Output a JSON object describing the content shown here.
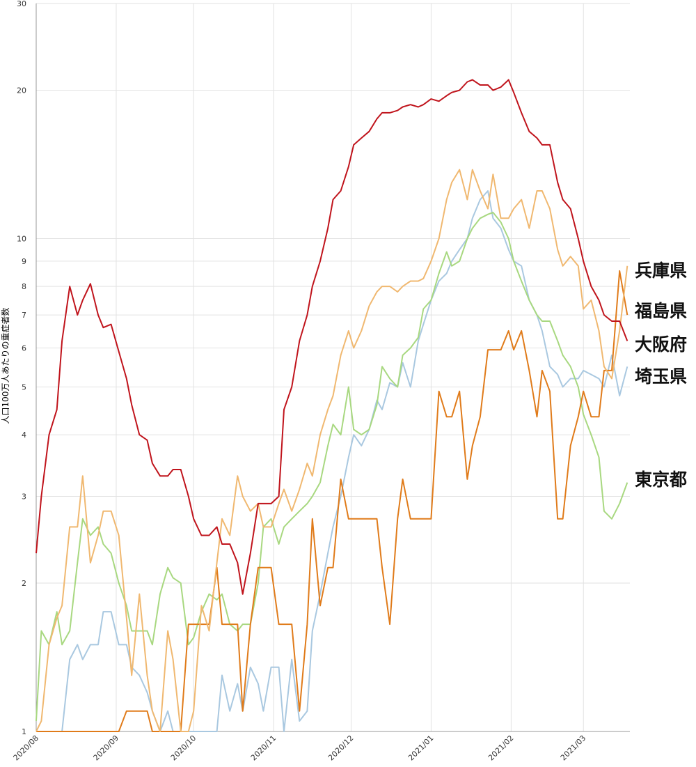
{
  "chart_data": {
    "type": "line",
    "y_label": "人口100万人あたりの重症者数",
    "log_y": true,
    "grid": true,
    "xlim": [
      0,
      230
    ],
    "ylim": [
      1,
      30
    ],
    "xticks": [
      {
        "value": 0,
        "label": "2020/08"
      },
      {
        "value": 31,
        "label": "2020/09"
      },
      {
        "value": 61,
        "label": "2020/10"
      },
      {
        "value": 92,
        "label": "2020/11"
      },
      {
        "value": 122,
        "label": "2020/12"
      },
      {
        "value": 153,
        "label": "2021/01"
      },
      {
        "value": 184,
        "label": "2021/02"
      },
      {
        "value": 212,
        "label": "2021/03"
      }
    ],
    "yticks": [
      1,
      2,
      3,
      4,
      5,
      6,
      7,
      8,
      9,
      10,
      20,
      30
    ],
    "x": [
      0,
      2,
      5,
      8,
      10,
      13,
      16,
      18,
      21,
      24,
      26,
      29,
      32,
      35,
      37,
      40,
      43,
      45,
      48,
      51,
      53,
      56,
      59,
      61,
      64,
      67,
      70,
      72,
      75,
      78,
      80,
      83,
      86,
      88,
      91,
      94,
      96,
      99,
      102,
      105,
      107,
      110,
      113,
      115,
      118,
      121,
      123,
      126,
      129,
      132,
      134,
      137,
      140,
      142,
      145,
      148,
      150,
      153,
      156,
      159,
      161,
      164,
      167,
      169,
      172,
      175,
      177,
      180,
      183,
      185,
      188,
      191,
      194,
      196,
      199,
      202,
      204,
      207,
      210,
      212,
      215,
      218,
      220,
      223,
      226,
      229
    ],
    "series": [
      {
        "name": "兵庫県",
        "color": "#f0b870",
        "values": [
          1.0,
          1.05,
          1.5,
          1.7,
          1.8,
          2.6,
          2.6,
          3.3,
          2.2,
          2.5,
          2.8,
          2.8,
          2.5,
          1.7,
          1.3,
          1.9,
          1.3,
          1.1,
          1.0,
          1.6,
          1.4,
          1.0,
          1.0,
          1.1,
          1.8,
          1.6,
          2.2,
          2.7,
          2.5,
          3.3,
          3.0,
          2.8,
          2.9,
          2.6,
          2.6,
          2.9,
          3.1,
          2.8,
          3.1,
          3.5,
          3.3,
          4.0,
          4.5,
          4.8,
          5.8,
          6.5,
          6.0,
          6.5,
          7.3,
          7.8,
          8.0,
          8.0,
          7.8,
          8.0,
          8.2,
          8.2,
          8.3,
          9.0,
          10,
          12,
          13,
          13.8,
          12,
          13.8,
          12.5,
          11.5,
          13.5,
          11,
          11,
          11.5,
          12,
          10.5,
          12.5,
          12.5,
          11.5,
          9.5,
          8.8,
          9.2,
          8.8,
          7.2,
          7.5,
          6.5,
          5.5,
          5.2,
          6.5,
          8.8
        ]
      },
      {
        "name": "福島県",
        "color": "#e07b1a",
        "values": [
          1.0,
          1.0,
          1.0,
          1.0,
          1.0,
          1.0,
          1.0,
          1.0,
          1.0,
          1.0,
          1.0,
          1.0,
          1.0,
          1.1,
          1.1,
          1.1,
          1.1,
          1.0,
          1.0,
          1.0,
          1.0,
          1.0,
          1.65,
          1.65,
          1.65,
          1.65,
          2.15,
          1.65,
          1.65,
          1.65,
          1.1,
          1.65,
          2.15,
          2.15,
          2.15,
          1.65,
          1.65,
          1.65,
          1.1,
          1.65,
          2.7,
          1.8,
          2.15,
          2.15,
          3.25,
          2.7,
          2.7,
          2.7,
          2.7,
          2.7,
          2.15,
          1.65,
          2.7,
          3.25,
          2.7,
          2.7,
          2.7,
          2.7,
          4.9,
          4.35,
          4.35,
          4.9,
          3.25,
          3.8,
          4.35,
          5.95,
          5.95,
          5.95,
          6.5,
          5.95,
          6.5,
          5.4,
          4.35,
          5.4,
          4.9,
          2.7,
          2.7,
          3.8,
          4.35,
          4.9,
          4.35,
          4.35,
          5.4,
          5.4,
          8.6,
          7.0
        ]
      },
      {
        "name": "大阪府",
        "color": "#c0141c",
        "values": [
          2.3,
          3.0,
          4.0,
          4.5,
          6.2,
          8.0,
          7.0,
          7.5,
          8.1,
          7.0,
          6.6,
          6.7,
          5.9,
          5.2,
          4.6,
          4.0,
          3.9,
          3.5,
          3.3,
          3.3,
          3.4,
          3.4,
          3.0,
          2.7,
          2.5,
          2.5,
          2.6,
          2.4,
          2.4,
          2.2,
          1.9,
          2.3,
          2.9,
          2.9,
          2.9,
          3.0,
          4.5,
          5.0,
          6.2,
          7.0,
          8.0,
          9.0,
          10.5,
          12.0,
          12.5,
          14,
          15.5,
          16,
          16.5,
          17.5,
          18,
          18,
          18.2,
          18.5,
          18.7,
          18.5,
          18.7,
          19.2,
          19,
          19.5,
          19.8,
          20,
          20.8,
          21,
          20.5,
          20.5,
          20,
          20.3,
          21,
          19.8,
          18,
          16.5,
          16,
          15.5,
          15.5,
          13,
          12,
          11.5,
          10,
          9,
          8,
          7.5,
          7,
          6.8,
          6.8,
          6.2
        ]
      },
      {
        "name": "埼玉県",
        "color": "#a9c8e0",
        "values": [
          1.0,
          1.0,
          1.0,
          1.0,
          1.0,
          1.4,
          1.5,
          1.4,
          1.5,
          1.5,
          1.75,
          1.75,
          1.5,
          1.5,
          1.35,
          1.3,
          1.2,
          1.1,
          1.0,
          1.1,
          1.0,
          1.0,
          1.0,
          1.0,
          1.0,
          1.0,
          1.0,
          1.3,
          1.1,
          1.25,
          1.1,
          1.35,
          1.25,
          1.1,
          1.35,
          1.35,
          1.0,
          1.4,
          1.05,
          1.1,
          1.6,
          1.9,
          2.3,
          2.6,
          3.0,
          3.6,
          4.0,
          3.8,
          4.1,
          4.7,
          4.5,
          5.1,
          5.0,
          5.6,
          5.0,
          6.2,
          6.7,
          7.5,
          8.2,
          8.5,
          9.0,
          9.5,
          10,
          11,
          12,
          12.5,
          11,
          10.5,
          9.5,
          9.0,
          8.8,
          7.5,
          7.0,
          6.5,
          5.5,
          5.3,
          5.0,
          5.2,
          5.2,
          5.4,
          5.3,
          5.2,
          5.0,
          5.8,
          4.8,
          5.5
        ]
      },
      {
        "name": "東京都",
        "color": "#a8d880",
        "values": [
          1.05,
          1.6,
          1.5,
          1.75,
          1.5,
          1.6,
          2.2,
          2.7,
          2.5,
          2.6,
          2.4,
          2.3,
          2.0,
          1.8,
          1.6,
          1.6,
          1.6,
          1.5,
          1.9,
          2.15,
          2.05,
          2.0,
          1.5,
          1.55,
          1.75,
          1.9,
          1.85,
          1.9,
          1.65,
          1.6,
          1.65,
          1.65,
          2.0,
          2.6,
          2.7,
          2.4,
          2.6,
          2.7,
          2.8,
          2.9,
          3.0,
          3.2,
          3.8,
          4.2,
          4.0,
          5.0,
          4.1,
          4.0,
          4.1,
          4.6,
          5.5,
          5.2,
          5.0,
          5.8,
          6.0,
          6.3,
          7.2,
          7.5,
          8.5,
          9.4,
          8.8,
          9.0,
          10,
          10.5,
          11,
          11.2,
          11.3,
          10.8,
          10,
          9.0,
          8.2,
          7.5,
          7.0,
          6.8,
          6.8,
          6.2,
          5.8,
          5.5,
          5.0,
          4.4,
          4.0,
          3.6,
          2.8,
          2.7,
          2.9,
          3.2
        ]
      }
    ]
  }
}
